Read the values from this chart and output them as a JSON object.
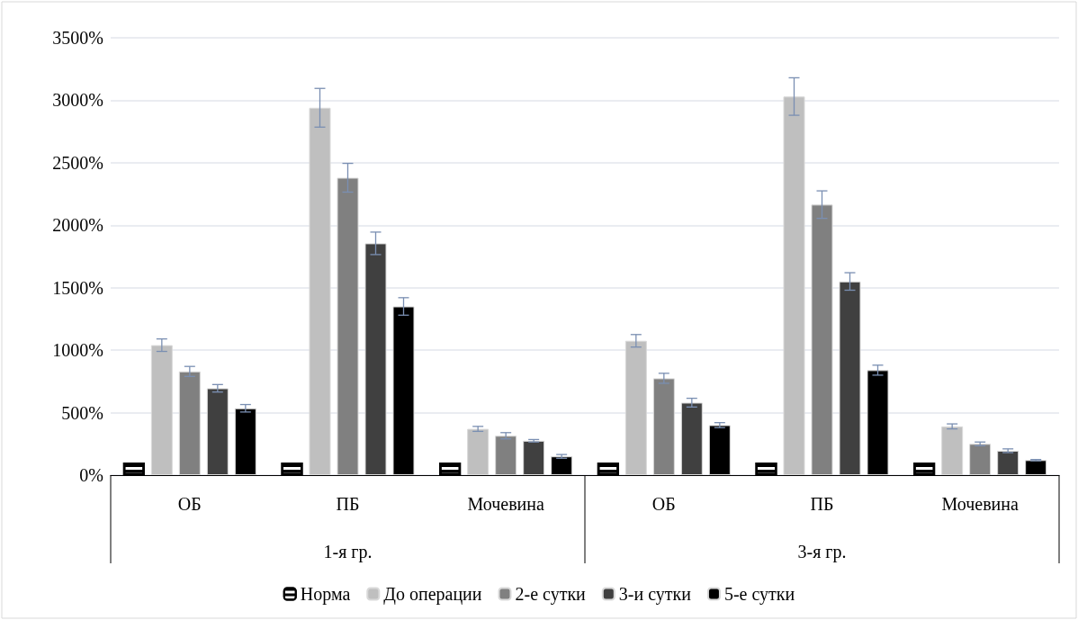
{
  "chart_data": {
    "type": "bar",
    "categories": [
      "ОБ",
      "ПБ",
      "Мочевина",
      "ОБ",
      "ПБ",
      "Мочевина"
    ],
    "annotations": [
      "1-я гр.",
      "3-я гр."
    ],
    "series": [
      {
        "name": "Норма",
        "color": "#ffffff",
        "values": [
          100,
          100,
          100,
          100,
          100,
          100
        ]
      },
      {
        "name": "До операции",
        "color": "#bfbfbf",
        "values": [
          1040,
          2940,
          370,
          1075,
          3030,
          390
        ],
        "errors": [
          50,
          155,
          20,
          50,
          150,
          20
        ]
      },
      {
        "name": "2-е сутки",
        "color": "#808080",
        "values": [
          830,
          2380,
          315,
          775,
          2165,
          250
        ],
        "errors": [
          40,
          115,
          25,
          40,
          110,
          15
        ]
      },
      {
        "name": "3-и сутки",
        "color": "#404040",
        "values": [
          695,
          1855,
          275,
          580,
          1550,
          195
        ],
        "errors": [
          30,
          90,
          10,
          35,
          70,
          15
        ]
      },
      {
        "name": "5-е сутки",
        "color": "#000000",
        "values": [
          535,
          1350,
          150,
          400,
          840,
          120
        ],
        "errors": [
          30,
          70,
          15,
          20,
          40,
          5
        ]
      }
    ],
    "ylim": [
      0,
      3500
    ],
    "yticks": [
      {
        "value": 0,
        "label": "0%"
      },
      {
        "value": 500,
        "label": "500%"
      },
      {
        "value": 1000,
        "label": "1000%"
      },
      {
        "value": 1500,
        "label": "1500%"
      },
      {
        "value": 2000,
        "label": "2000%"
      },
      {
        "value": 2500,
        "label": "2500%"
      },
      {
        "value": 3000,
        "label": "3000%"
      },
      {
        "value": 3500,
        "label": "3500%"
      }
    ],
    "grid": "y",
    "legend": "bottom"
  }
}
